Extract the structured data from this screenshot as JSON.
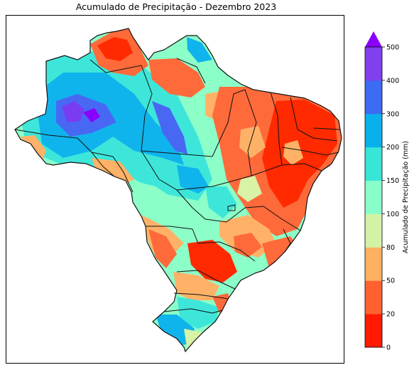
{
  "title": "Acumulado de Precipitação - Dezembro 2023",
  "colorbar": {
    "label": "Acumulado de Precipitação (mm)",
    "extend": "max",
    "ticks": [
      "0",
      "20",
      "50",
      "80",
      "100",
      "150",
      "200",
      "300",
      "400",
      "500"
    ],
    "colors": [
      "#ff1a00",
      "#ff6030",
      "#ffb060",
      "#d4f2a6",
      "#88ffc8",
      "#38e6d8",
      "#08b0ec",
      "#3c6cf4",
      "#8040f0"
    ],
    "extend_color": "#8a00ff"
  },
  "map": {
    "region": "Brasil",
    "colors": {
      "dry": "#ff2a00",
      "low": "#ff6a3a",
      "mid_low": "#ffb267",
      "mid": "#d8f2a6",
      "mid_high": "#8cffc8",
      "high": "#3ee6da",
      "very_high": "#10b4ec",
      "extreme": "#4868f4",
      "peak": "#7a3cf0",
      "border": "#111111"
    }
  }
}
